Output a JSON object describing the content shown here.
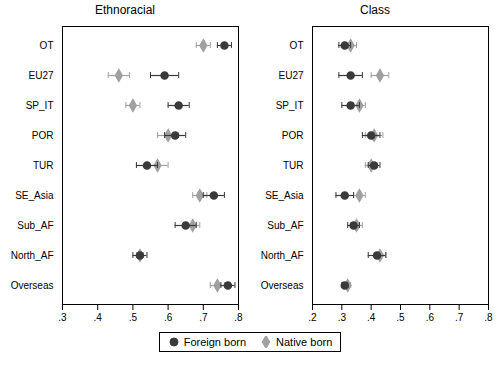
{
  "chart_data": [
    {
      "type": "scatter",
      "title": "Ethnoracial",
      "orientation": "horizontal",
      "categories": [
        "OT",
        "EU27",
        "SP_IT",
        "POR",
        "TUR",
        "SE_Asia",
        "Sub_AF",
        "North_AF",
        "Overseas"
      ],
      "series": [
        {
          "name": "Foreign born",
          "color": "#3a3a3a",
          "marker": "circle",
          "values": [
            0.76,
            0.59,
            0.63,
            0.62,
            0.54,
            0.73,
            0.65,
            0.52,
            0.77
          ],
          "ci_low": [
            0.02,
            0.04,
            0.03,
            0.03,
            0.03,
            0.03,
            0.03,
            0.02,
            0.02
          ],
          "ci_high": [
            0.02,
            0.04,
            0.03,
            0.03,
            0.03,
            0.03,
            0.03,
            0.02,
            0.02
          ]
        },
        {
          "name": "Native born",
          "color": "#a0a0a0",
          "marker": "diamond",
          "values": [
            0.7,
            0.46,
            0.5,
            0.6,
            0.57,
            0.69,
            0.67,
            0.52,
            0.74
          ],
          "ci_low": [
            0.02,
            0.03,
            0.02,
            0.03,
            0.03,
            0.02,
            0.02,
            0.01,
            0.02
          ],
          "ci_high": [
            0.02,
            0.03,
            0.02,
            0.03,
            0.03,
            0.02,
            0.02,
            0.01,
            0.02
          ]
        }
      ],
      "xlim": [
        0.3,
        0.8
      ],
      "xticks": [
        {
          "value": 0.3,
          "label": ".3"
        },
        {
          "value": 0.4,
          "label": ".4"
        },
        {
          "value": 0.5,
          "label": ".5"
        },
        {
          "value": 0.6,
          "label": ".6"
        },
        {
          "value": 0.7,
          "label": ".7"
        },
        {
          "value": 0.8,
          "label": ".8"
        }
      ],
      "grid": false,
      "legend": "bottom"
    },
    {
      "type": "scatter",
      "title": "Class",
      "orientation": "horizontal",
      "categories": [
        "OT",
        "EU27",
        "SP_IT",
        "POR",
        "TUR",
        "SE_Asia",
        "Sub_AF",
        "North_AF",
        "Overseas"
      ],
      "series": [
        {
          "name": "Foreign born",
          "color": "#3a3a3a",
          "marker": "circle",
          "values": [
            0.31,
            0.33,
            0.33,
            0.4,
            0.41,
            0.31,
            0.34,
            0.42,
            0.31
          ],
          "ci_low": [
            0.02,
            0.04,
            0.03,
            0.03,
            0.02,
            0.03,
            0.02,
            0.03,
            0.01
          ],
          "ci_high": [
            0.02,
            0.04,
            0.03,
            0.03,
            0.02,
            0.03,
            0.02,
            0.03,
            0.01
          ]
        },
        {
          "name": "Native born",
          "color": "#a0a0a0",
          "marker": "diamond",
          "values": [
            0.33,
            0.43,
            0.36,
            0.41,
            0.4,
            0.36,
            0.35,
            0.43,
            0.32
          ],
          "ci_low": [
            0.02,
            0.03,
            0.02,
            0.03,
            0.02,
            0.02,
            0.02,
            0.02,
            0.01
          ],
          "ci_high": [
            0.02,
            0.03,
            0.02,
            0.03,
            0.02,
            0.02,
            0.02,
            0.02,
            0.01
          ]
        }
      ],
      "xlim": [
        0.2,
        0.8
      ],
      "xticks": [
        {
          "value": 0.2,
          "label": ".2"
        },
        {
          "value": 0.3,
          "label": ".3"
        },
        {
          "value": 0.4,
          "label": ".4"
        },
        {
          "value": 0.5,
          "label": ".5"
        },
        {
          "value": 0.6,
          "label": ".6"
        },
        {
          "value": 0.7,
          "label": ".7"
        },
        {
          "value": 0.8,
          "label": ".8"
        }
      ],
      "grid": false,
      "legend": "bottom"
    }
  ]
}
